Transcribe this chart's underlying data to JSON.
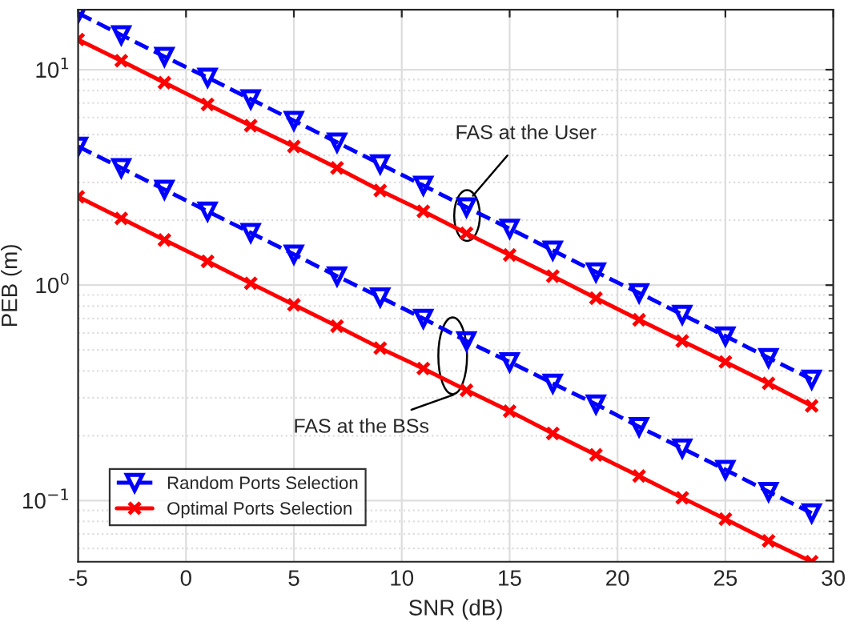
{
  "chart_data": {
    "type": "line",
    "xlabel": "SNR (dB)",
    "ylabel": "PEB (m)",
    "x": [
      -5,
      -3,
      -1,
      1,
      3,
      5,
      7,
      9,
      11,
      13,
      15,
      17,
      19,
      21,
      23,
      25,
      27,
      29
    ],
    "series": [
      {
        "name": "Random Ports Selection",
        "color": "#0000ff",
        "marker": "triangle",
        "line_style": "dashed",
        "values": [
          18.3,
          14.5,
          11.5,
          9.2,
          7.3,
          5.8,
          4.6,
          3.65,
          2.9,
          2.3,
          1.83,
          1.45,
          1.15,
          0.92,
          0.73,
          0.58,
          0.46,
          0.365
        ]
      },
      {
        "name": "Optimal Ports Selection",
        "color": "#ff0000",
        "marker": "cross",
        "line_style": "solid",
        "values": [
          13.8,
          11,
          8.7,
          6.9,
          5.5,
          4.4,
          3.5,
          2.75,
          2.2,
          1.74,
          1.38,
          1.1,
          0.87,
          0.69,
          0.55,
          0.44,
          0.35,
          0.275
        ]
      },
      {
        "color": "#0000ff",
        "marker": "triangle",
        "line_style": "dashed",
        "values": [
          4.4,
          3.5,
          2.78,
          2.2,
          1.75,
          1.39,
          1.1,
          0.88,
          0.7,
          0.55,
          0.44,
          0.35,
          0.28,
          0.22,
          0.175,
          0.139,
          0.11,
          0.0875
        ]
      },
      {
        "color": "#ff0000",
        "marker": "cross",
        "line_style": "solid",
        "values": [
          2.57,
          2.04,
          1.62,
          1.29,
          1.02,
          0.81,
          0.645,
          0.51,
          0.41,
          0.325,
          0.26,
          0.205,
          0.163,
          0.13,
          0.103,
          0.082,
          0.065,
          0.052
        ]
      }
    ],
    "xlim": [
      -5,
      30
    ],
    "xticks": [
      -5,
      0,
      5,
      10,
      15,
      20,
      25,
      30
    ],
    "ylim": [
      0.052,
      19
    ],
    "log": "y",
    "yticks": [
      {
        "value": 0.1,
        "label": "10$^{−1}$"
      },
      {
        "value": 1,
        "label": "10$^{0}$"
      },
      {
        "value": 10,
        "label": "10$^{1}$"
      }
    ],
    "annotations": [
      {
        "text": "FAS at the User",
        "x": 13.3,
        "y": 2.6
      },
      {
        "text": "FAS at the BSs",
        "x": 12.4,
        "y": 0.31
      }
    ],
    "grid": true,
    "legend": "bottom left"
  }
}
